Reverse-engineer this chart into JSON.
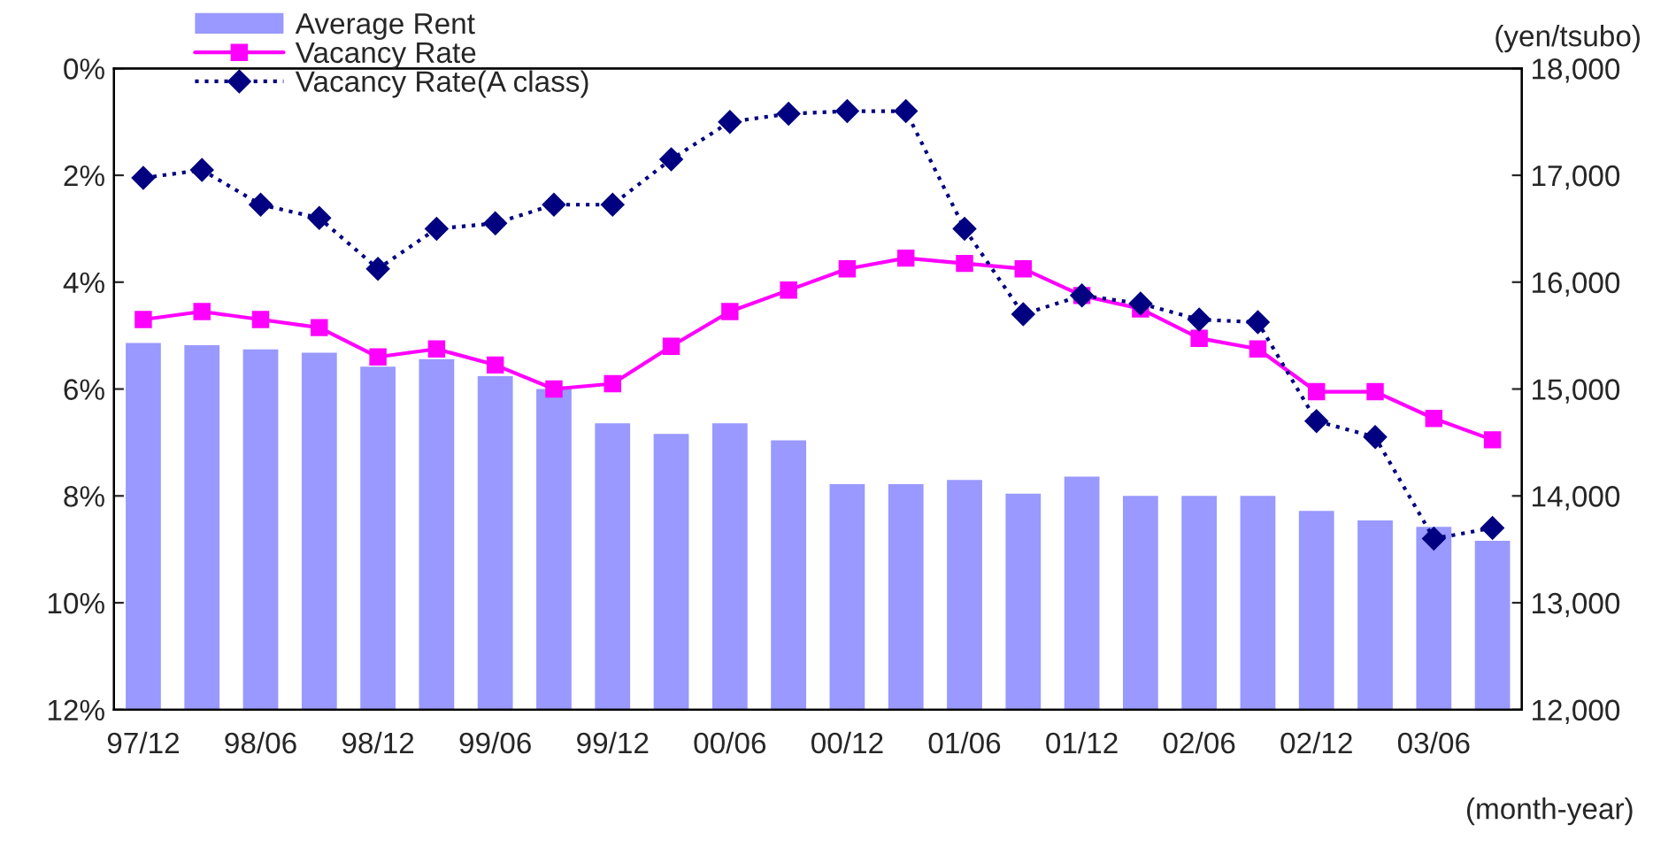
{
  "chart_data": {
    "type": "line",
    "categories": [
      "97/12",
      null,
      "98/06",
      null,
      "98/12",
      null,
      "99/06",
      null,
      "99/12",
      null,
      "00/06",
      null,
      "00/12",
      null,
      "01/06",
      null,
      "01/12",
      null,
      "02/06",
      null,
      "02/12",
      null,
      "03/06",
      null
    ],
    "series": [
      {
        "name": "Average Rent",
        "type": "bar",
        "axis": "y2",
        "color": "#9999ff",
        "values": [
          15430,
          15410,
          15370,
          15340,
          15210,
          15280,
          15120,
          15000,
          14680,
          14580,
          14680,
          14520,
          14110,
          14110,
          14150,
          14020,
          14180,
          14000,
          14000,
          14000,
          13860,
          13770,
          13710,
          13580
        ]
      },
      {
        "name": "Vacancy Rate",
        "color": "#ff00ff",
        "marker": "square",
        "line_style": "solid",
        "values": [
          4.7,
          4.55,
          4.7,
          4.85,
          5.4,
          5.25,
          5.55,
          6.0,
          5.9,
          5.2,
          4.55,
          4.15,
          3.75,
          3.55,
          3.65,
          3.75,
          4.25,
          4.5,
          5.05,
          5.25,
          6.05,
          6.05,
          6.55,
          6.95
        ]
      },
      {
        "name": "Vacancy Rate(A class)",
        "color": "#000080",
        "marker": "diamond",
        "line_style": "dotted",
        "values": [
          2.05,
          1.9,
          2.55,
          2.8,
          3.75,
          3.0,
          2.9,
          2.55,
          2.55,
          1.7,
          1.0,
          0.85,
          0.8,
          0.8,
          3.0,
          4.6,
          4.25,
          4.4,
          4.7,
          4.75,
          6.6,
          6.9,
          8.8,
          8.6
        ]
      }
    ],
    "ylim": [
      12,
      0
    ],
    "yticks": [
      {
        "value": 0,
        "label": "0%"
      },
      {
        "value": 2,
        "label": "2%"
      },
      {
        "value": 4,
        "label": "4%"
      },
      {
        "value": 6,
        "label": "6%"
      },
      {
        "value": 8,
        "label": "8%"
      },
      {
        "value": 10,
        "label": "10%"
      },
      {
        "value": 12,
        "label": "12%"
      }
    ],
    "y2lim": [
      12000,
      18000
    ],
    "y2ticks": [
      {
        "value": 12000,
        "label": "12,000"
      },
      {
        "value": 13000,
        "label": "13,000"
      },
      {
        "value": 14000,
        "label": "14,000"
      },
      {
        "value": 15000,
        "label": "15,000"
      },
      {
        "value": 16000,
        "label": "16,000"
      },
      {
        "value": 17000,
        "label": "17,000"
      },
      {
        "value": 18000,
        "label": "18,000"
      }
    ],
    "y2label": "(yen/tsubo)",
    "xlabel": "(month-year)",
    "legend": "top left",
    "grid": false
  }
}
